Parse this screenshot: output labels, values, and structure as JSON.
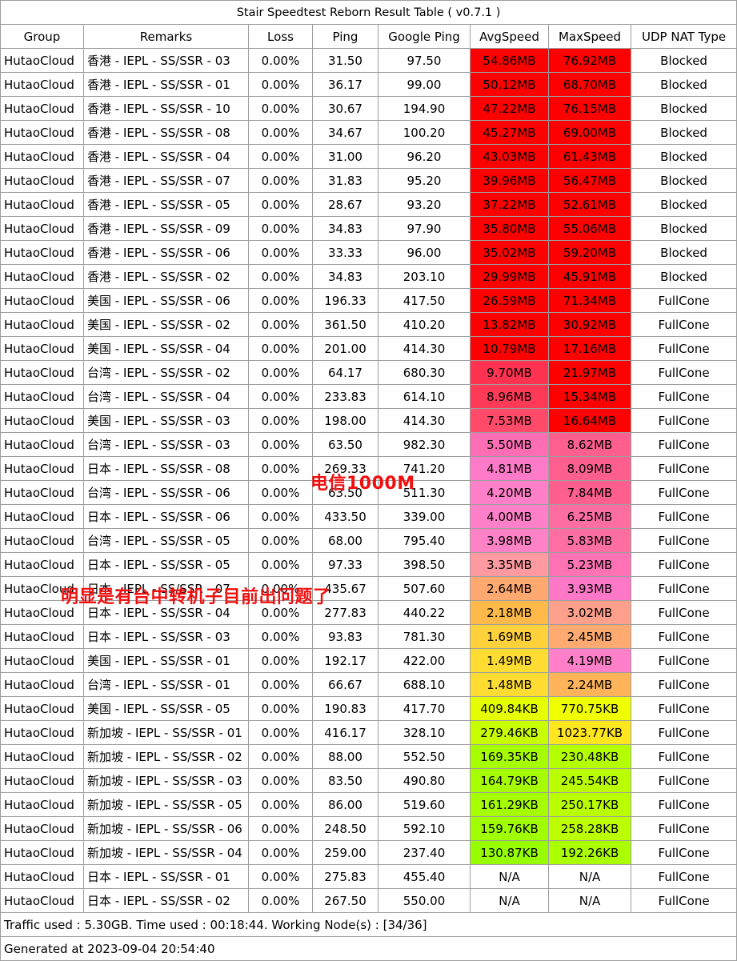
{
  "title": "Stair Speedtest Reborn Result Table ( v0.7.1 )",
  "headers": [
    "Group",
    "Remarks",
    "Loss",
    "Ping",
    "Google Ping",
    "AvgSpeed",
    "MaxSpeed",
    "UDP NAT Type"
  ],
  "rows": [
    {
      "group": "HutaoCloud",
      "remarks": "香港 - IEPL - SS/SSR - 03",
      "loss": "0.00%",
      "ping": "31.50",
      "gping": "97.50",
      "avg": "54.86MB",
      "max": "76.92MB",
      "nat": "Blocked",
      "avg_color": "#ff0000",
      "max_color": "#ff0000"
    },
    {
      "group": "HutaoCloud",
      "remarks": "香港 - IEPL - SS/SSR - 01",
      "loss": "0.00%",
      "ping": "36.17",
      "gping": "99.00",
      "avg": "50.12MB",
      "max": "68.70MB",
      "nat": "Blocked",
      "avg_color": "#ff0000",
      "max_color": "#ff0000"
    },
    {
      "group": "HutaoCloud",
      "remarks": "香港 - IEPL - SS/SSR - 10",
      "loss": "0.00%",
      "ping": "30.67",
      "gping": "194.90",
      "avg": "47.22MB",
      "max": "76.15MB",
      "nat": "Blocked",
      "avg_color": "#ff0000",
      "max_color": "#ff0000"
    },
    {
      "group": "HutaoCloud",
      "remarks": "香港 - IEPL - SS/SSR - 08",
      "loss": "0.00%",
      "ping": "34.67",
      "gping": "100.20",
      "avg": "45.27MB",
      "max": "69.00MB",
      "nat": "Blocked",
      "avg_color": "#ff0000",
      "max_color": "#ff0000"
    },
    {
      "group": "HutaoCloud",
      "remarks": "香港 - IEPL - SS/SSR - 04",
      "loss": "0.00%",
      "ping": "31.00",
      "gping": "96.20",
      "avg": "43.03MB",
      "max": "61.43MB",
      "nat": "Blocked",
      "avg_color": "#ff0000",
      "max_color": "#ff0000"
    },
    {
      "group": "HutaoCloud",
      "remarks": "香港 - IEPL - SS/SSR - 07",
      "loss": "0.00%",
      "ping": "31.83",
      "gping": "95.20",
      "avg": "39.96MB",
      "max": "56.47MB",
      "nat": "Blocked",
      "avg_color": "#ff0000",
      "max_color": "#ff0000"
    },
    {
      "group": "HutaoCloud",
      "remarks": "香港 - IEPL - SS/SSR - 05",
      "loss": "0.00%",
      "ping": "28.67",
      "gping": "93.20",
      "avg": "37.22MB",
      "max": "52.61MB",
      "nat": "Blocked",
      "avg_color": "#ff0000",
      "max_color": "#ff0000"
    },
    {
      "group": "HutaoCloud",
      "remarks": "香港 - IEPL - SS/SSR - 09",
      "loss": "0.00%",
      "ping": "34.83",
      "gping": "97.90",
      "avg": "35.80MB",
      "max": "55.06MB",
      "nat": "Blocked",
      "avg_color": "#ff0000",
      "max_color": "#ff0000"
    },
    {
      "group": "HutaoCloud",
      "remarks": "香港 - IEPL - SS/SSR - 06",
      "loss": "0.00%",
      "ping": "33.33",
      "gping": "96.00",
      "avg": "35.02MB",
      "max": "59.20MB",
      "nat": "Blocked",
      "avg_color": "#ff0000",
      "max_color": "#ff0000"
    },
    {
      "group": "HutaoCloud",
      "remarks": "香港 - IEPL - SS/SSR - 02",
      "loss": "0.00%",
      "ping": "34.83",
      "gping": "203.10",
      "avg": "29.99MB",
      "max": "45.91MB",
      "nat": "Blocked",
      "avg_color": "#ff0000",
      "max_color": "#ff0000"
    },
    {
      "group": "HutaoCloud",
      "remarks": "美国 - IEPL - SS/SSR - 06",
      "loss": "0.00%",
      "ping": "196.33",
      "gping": "417.50",
      "avg": "26.59MB",
      "max": "71.34MB",
      "nat": "FullCone",
      "avg_color": "#ff0000",
      "max_color": "#ff0000"
    },
    {
      "group": "HutaoCloud",
      "remarks": "美国 - IEPL - SS/SSR - 02",
      "loss": "0.00%",
      "ping": "361.50",
      "gping": "410.20",
      "avg": "13.82MB",
      "max": "30.92MB",
      "nat": "FullCone",
      "avg_color": "#ff0000",
      "max_color": "#ff0000"
    },
    {
      "group": "HutaoCloud",
      "remarks": "美国 - IEPL - SS/SSR - 04",
      "loss": "0.00%",
      "ping": "201.00",
      "gping": "414.30",
      "avg": "10.79MB",
      "max": "17.16MB",
      "nat": "FullCone",
      "avg_color": "#ff0000",
      "max_color": "#ff0000"
    },
    {
      "group": "HutaoCloud",
      "remarks": "台湾 - IEPL - SS/SSR - 02",
      "loss": "0.00%",
      "ping": "64.17",
      "gping": "680.30",
      "avg": "9.70MB",
      "max": "21.97MB",
      "nat": "FullCone",
      "avg_color": "#ff3250",
      "max_color": "#ff0000"
    },
    {
      "group": "HutaoCloud",
      "remarks": "台湾 - IEPL - SS/SSR - 04",
      "loss": "0.00%",
      "ping": "233.83",
      "gping": "614.10",
      "avg": "8.96MB",
      "max": "15.34MB",
      "nat": "FullCone",
      "avg_color": "#ff3a57",
      "max_color": "#ff0000"
    },
    {
      "group": "HutaoCloud",
      "remarks": "美国 - IEPL - SS/SSR - 03",
      "loss": "0.00%",
      "ping": "198.00",
      "gping": "414.30",
      "avg": "7.53MB",
      "max": "16.64MB",
      "nat": "FullCone",
      "avg_color": "#ff4a6a",
      "max_color": "#ff0000"
    },
    {
      "group": "HutaoCloud",
      "remarks": "台湾 - IEPL - SS/SSR - 03",
      "loss": "0.00%",
      "ping": "63.50",
      "gping": "982.30",
      "avg": "5.50MB",
      "max": "8.62MB",
      "nat": "FullCone",
      "avg_color": "#ff6eb4",
      "max_color": "#ff5f8f"
    },
    {
      "group": "HutaoCloud",
      "remarks": "日本 - IEPL - SS/SSR - 08",
      "loss": "0.00%",
      "ping": "269.33",
      "gping": "741.20",
      "avg": "4.81MB",
      "max": "8.09MB",
      "nat": "FullCone",
      "avg_color": "#ff7ac8",
      "max_color": "#ff5f8f"
    },
    {
      "group": "HutaoCloud",
      "remarks": "台湾 - IEPL - SS/SSR - 06",
      "loss": "0.00%",
      "ping": "63.50",
      "gping": "511.30",
      "avg": "4.20MB",
      "max": "7.84MB",
      "nat": "FullCone",
      "avg_color": "#ff80c8",
      "max_color": "#ff5f8f"
    },
    {
      "group": "HutaoCloud",
      "remarks": "日本 - IEPL - SS/SSR - 06",
      "loss": "0.00%",
      "ping": "433.50",
      "gping": "339.00",
      "avg": "4.00MB",
      "max": "6.25MB",
      "nat": "FullCone",
      "avg_color": "#ff80c8",
      "max_color": "#ff6ea0"
    },
    {
      "group": "HutaoCloud",
      "remarks": "台湾 - IEPL - SS/SSR - 05",
      "loss": "0.00%",
      "ping": "68.00",
      "gping": "795.40",
      "avg": "3.98MB",
      "max": "5.83MB",
      "nat": "FullCone",
      "avg_color": "#ff82c6",
      "max_color": "#ff6ea0"
    },
    {
      "group": "HutaoCloud",
      "remarks": "日本 - IEPL - SS/SSR - 05",
      "loss": "0.00%",
      "ping": "97.33",
      "gping": "398.50",
      "avg": "3.35MB",
      "max": "5.23MB",
      "nat": "FullCone",
      "avg_color": "#ff9aa0",
      "max_color": "#ff72b4"
    },
    {
      "group": "HutaoCloud",
      "remarks": "日本 - IEPL - SS/SSR - 07",
      "loss": "0.00%",
      "ping": "435.67",
      "gping": "507.60",
      "avg": "2.64MB",
      "max": "3.93MB",
      "nat": "FullCone",
      "avg_color": "#ffa870",
      "max_color": "#ff78c8"
    },
    {
      "group": "HutaoCloud",
      "remarks": "日本 - IEPL - SS/SSR - 04",
      "loss": "0.00%",
      "ping": "277.83",
      "gping": "440.22",
      "avg": "2.18MB",
      "max": "3.02MB",
      "nat": "FullCone",
      "avg_color": "#ffb84a",
      "max_color": "#ffa08c"
    },
    {
      "group": "HutaoCloud",
      "remarks": "日本 - IEPL - SS/SSR - 03",
      "loss": "0.00%",
      "ping": "93.83",
      "gping": "781.30",
      "avg": "1.69MB",
      "max": "2.45MB",
      "nat": "FullCone",
      "avg_color": "#ffd23c",
      "max_color": "#ffaa70"
    },
    {
      "group": "HutaoCloud",
      "remarks": "美国 - IEPL - SS/SSR - 01",
      "loss": "0.00%",
      "ping": "192.17",
      "gping": "422.00",
      "avg": "1.49MB",
      "max": "4.19MB",
      "nat": "FullCone",
      "avg_color": "#ffdc32",
      "max_color": "#ff80c8"
    },
    {
      "group": "HutaoCloud",
      "remarks": "台湾 - IEPL - SS/SSR - 01",
      "loss": "0.00%",
      "ping": "66.67",
      "gping": "688.10",
      "avg": "1.48MB",
      "max": "2.24MB",
      "nat": "FullCone",
      "avg_color": "#ffdc32",
      "max_color": "#ffb45a"
    },
    {
      "group": "HutaoCloud",
      "remarks": "美国 - IEPL - SS/SSR - 05",
      "loss": "0.00%",
      "ping": "190.83",
      "gping": "417.70",
      "avg": "409.84KB",
      "max": "770.75KB",
      "nat": "FullCone",
      "avg_color": "#e6ff00",
      "max_color": "#f0ff00"
    },
    {
      "group": "HutaoCloud",
      "remarks": "新加坡 - IEPL - SS/SSR - 01",
      "loss": "0.00%",
      "ping": "416.17",
      "gping": "328.10",
      "avg": "279.46KB",
      "max": "1023.77KB",
      "nat": "FullCone",
      "avg_color": "#c8ff00",
      "max_color": "#ffe61e"
    },
    {
      "group": "HutaoCloud",
      "remarks": "新加坡 - IEPL - SS/SSR - 02",
      "loss": "0.00%",
      "ping": "88.00",
      "gping": "552.50",
      "avg": "169.35KB",
      "max": "230.48KB",
      "nat": "FullCone",
      "avg_color": "#a5ff00",
      "max_color": "#b4ff00"
    },
    {
      "group": "HutaoCloud",
      "remarks": "新加坡 - IEPL - SS/SSR - 03",
      "loss": "0.00%",
      "ping": "83.50",
      "gping": "490.80",
      "avg": "164.79KB",
      "max": "245.54KB",
      "nat": "FullCone",
      "avg_color": "#a5ff00",
      "max_color": "#b9ff00"
    },
    {
      "group": "HutaoCloud",
      "remarks": "新加坡 - IEPL - SS/SSR - 05",
      "loss": "0.00%",
      "ping": "86.00",
      "gping": "519.60",
      "avg": "161.29KB",
      "max": "250.17KB",
      "nat": "FullCone",
      "avg_color": "#a5ff00",
      "max_color": "#b9ff00"
    },
    {
      "group": "HutaoCloud",
      "remarks": "新加坡 - IEPL - SS/SSR - 06",
      "loss": "0.00%",
      "ping": "248.50",
      "gping": "592.10",
      "avg": "159.76KB",
      "max": "258.28KB",
      "nat": "FullCone",
      "avg_color": "#a0ff00",
      "max_color": "#bcff00"
    },
    {
      "group": "HutaoCloud",
      "remarks": "新加坡 - IEPL - SS/SSR - 04",
      "loss": "0.00%",
      "ping": "259.00",
      "gping": "237.40",
      "avg": "130.87KB",
      "max": "192.26KB",
      "nat": "FullCone",
      "avg_color": "#96ff00",
      "max_color": "#aaff00"
    },
    {
      "group": "HutaoCloud",
      "remarks": "日本 - IEPL - SS/SSR - 01",
      "loss": "0.00%",
      "ping": "275.83",
      "gping": "455.40",
      "avg": "N/A",
      "max": "N/A",
      "nat": "FullCone",
      "avg_color": "#ffffff",
      "max_color": "#ffffff"
    },
    {
      "group": "HutaoCloud",
      "remarks": "日本 - IEPL - SS/SSR - 02",
      "loss": "0.00%",
      "ping": "267.50",
      "gping": "550.00",
      "avg": "N/A",
      "max": "N/A",
      "nat": "FullCone",
      "avg_color": "#ffffff",
      "max_color": "#ffffff"
    }
  ],
  "footer": {
    "traffic": "Traffic used : 5.30GB. Time used : 00:18:44. Working Node(s) : [34/36]",
    "generated": "Generated at 2023-09-04 20:54:40"
  },
  "annotations": {
    "isp": "电信1000M",
    "note": "明显是有台中转机子目前出问题了"
  },
  "colors": {
    "annotation": "#f01010",
    "border": "#9e9e9e"
  }
}
